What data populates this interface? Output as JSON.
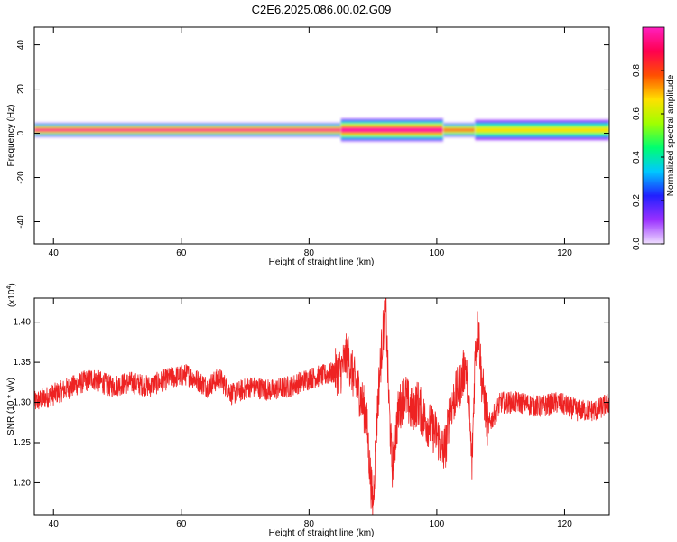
{
  "title": "C2E6.2025.086.00.02.G09",
  "chart_data": [
    {
      "type": "heatmap",
      "xlabel": "Height of straight line (km)",
      "ylabel": "Frequency (Hz)",
      "xlim": [
        37,
        127
      ],
      "ylim": [
        -50,
        48
      ],
      "xticks": [
        "40",
        "60",
        "80",
        "100",
        "120"
      ],
      "yticks": [
        "40",
        "20",
        "0",
        "-20",
        "-40"
      ],
      "band": {
        "center_hz": 1.5,
        "segments": [
          {
            "x_start": 37,
            "x_end": 85,
            "halfwidth_hz": 3.0,
            "core_amplitude": 0.95
          },
          {
            "x_start": 85,
            "x_end": 101,
            "halfwidth_hz": 5.0,
            "core_amplitude": 0.95
          },
          {
            "x_start": 101,
            "x_end": 106,
            "halfwidth_hz": 3.0,
            "core_amplitude": 0.9
          },
          {
            "x_start": 106,
            "x_end": 127,
            "halfwidth_hz": 4.5,
            "core_amplitude": 0.7
          }
        ]
      },
      "colorbar": {
        "label": "Normalized spectral amplitude",
        "ticks": [
          "0.0",
          "0.2",
          "0.4",
          "0.6",
          "0.8"
        ],
        "range": [
          0,
          1
        ],
        "colors": [
          "#f0e0ff",
          "#9a30ff",
          "#2020ff",
          "#00c8ff",
          "#00ff70",
          "#a0ff00",
          "#ffe000",
          "#ff5000",
          "#ff0050",
          "#ff20c0"
        ]
      }
    },
    {
      "type": "line",
      "xlabel": "Height of straight line (km)",
      "ylabel": "SNR (10 * v/v)",
      "multiplier": "(x10^4)",
      "multiplier_base": "(x10",
      "multiplier_exp": "4",
      "xlim": [
        37,
        127
      ],
      "ylim": [
        1.16,
        1.43
      ],
      "xticks": [
        "40",
        "60",
        "80",
        "100",
        "120"
      ],
      "yticks": [
        "1.40",
        "1.35",
        "1.30",
        "1.25",
        "1.20"
      ],
      "series_color": "#ee2222",
      "series": [
        {
          "x": [
            37,
            40,
            43,
            46,
            49,
            52,
            55,
            58,
            61,
            64,
            66,
            68,
            71,
            74,
            77,
            80,
            83,
            85,
            86,
            87,
            88,
            89,
            89.5,
            90,
            90.5,
            91,
            91.5,
            92,
            92.5,
            93,
            94,
            95,
            96,
            97,
            98,
            99,
            100,
            101,
            101.5,
            102,
            103,
            104,
            104.5,
            105,
            105.5,
            106,
            106.5,
            107,
            108,
            110,
            113,
            116,
            119,
            122,
            125,
            127
          ],
          "y": [
            1.3,
            1.31,
            1.32,
            1.33,
            1.32,
            1.325,
            1.32,
            1.33,
            1.335,
            1.32,
            1.33,
            1.31,
            1.32,
            1.315,
            1.32,
            1.33,
            1.335,
            1.34,
            1.36,
            1.33,
            1.31,
            1.28,
            1.22,
            1.17,
            1.26,
            1.33,
            1.38,
            1.42,
            1.3,
            1.22,
            1.29,
            1.31,
            1.29,
            1.3,
            1.28,
            1.27,
            1.26,
            1.24,
            1.25,
            1.29,
            1.31,
            1.33,
            1.35,
            1.3,
            1.22,
            1.36,
            1.4,
            1.33,
            1.27,
            1.3,
            1.3,
            1.295,
            1.3,
            1.29,
            1.29,
            1.3
          ]
        }
      ]
    }
  ]
}
